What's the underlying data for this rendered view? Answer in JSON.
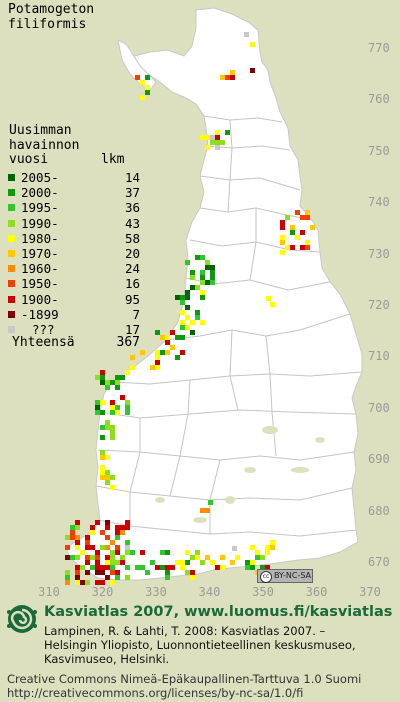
{
  "species": {
    "genus": "Potamogeton",
    "epithet": "filiformis"
  },
  "legend": {
    "header_lines": [
      "Uusimman",
      "havainnon"
    ],
    "col_year": "vuosi",
    "col_count": "lkm",
    "rows": [
      {
        "label": "2005-",
        "count": "14",
        "color": "#006400"
      },
      {
        "label": "2000-",
        "count": "37",
        "color": "#109810"
      },
      {
        "label": "1995-",
        "count": "36",
        "color": "#2ec82e"
      },
      {
        "label": "1990-",
        "count": "43",
        "color": "#8ede1e"
      },
      {
        "label": "1980-",
        "count": "58",
        "color": "#ffff00"
      },
      {
        "label": "1970-",
        "count": "20",
        "color": "#ffc800"
      },
      {
        "label": "1960-",
        "count": "24",
        "color": "#ff8c00"
      },
      {
        "label": "1950-",
        "count": "16",
        "color": "#f04000"
      },
      {
        "label": "1900-",
        "count": "95",
        "color": "#cc0000"
      },
      {
        "label": "-1899",
        "count": "7",
        "color": "#800000"
      },
      {
        "label": "???",
        "count": "17",
        "color": "#c8c8c8"
      }
    ],
    "total_label": "Yhteensä",
    "total_count": "367"
  },
  "axes": {
    "y_ticks": [
      "770",
      "760",
      "750",
      "740",
      "730",
      "720",
      "710",
      "700",
      "690",
      "680",
      "670"
    ],
    "x_ticks": [
      "310",
      "320",
      "330",
      "340",
      "350",
      "360",
      "370"
    ],
    "tick_color": "#9a9a9a"
  },
  "map": {
    "land_color": "#ffffff",
    "sea_color": "#dde0be",
    "border_color": "#bfbfbf",
    "clusters": [
      {
        "name": "sw-coast",
        "color_key": "1900-"
      },
      {
        "name": "west-coast-lower",
        "color_key": "2000-"
      },
      {
        "name": "ostrobothnia",
        "color_key": "1995-"
      },
      {
        "name": "oulu-area",
        "color_key": "2005-"
      },
      {
        "name": "kuusamo",
        "color_key": "1900-"
      },
      {
        "name": "lapland-north",
        "color_key": "1950-"
      },
      {
        "name": "south-coast",
        "color_key": "1995-"
      }
    ]
  },
  "license_badge": {
    "icon": "cc-icon",
    "text": "BY-NC-SA"
  },
  "footer": {
    "logo_icon": "snail-logo-icon",
    "site_title": "Kasviatlas 2007, www.luomus.fi/kasviatlas",
    "citation": [
      "Lampinen, R. & Lahti, T. 2008: Kasviatlas 2007. –",
      "Helsingin Yliopisto, Luonnontieteellinen keskusmuseo,",
      "Kasvimuseo, Helsinki."
    ],
    "license_line1": "Creative Commons Nimeä-Epäkaupallinen-Tarttuva 1.0 Suomi",
    "license_line2": "http://creativecommons.org/licenses/by-nc-sa/1.0/fi"
  }
}
